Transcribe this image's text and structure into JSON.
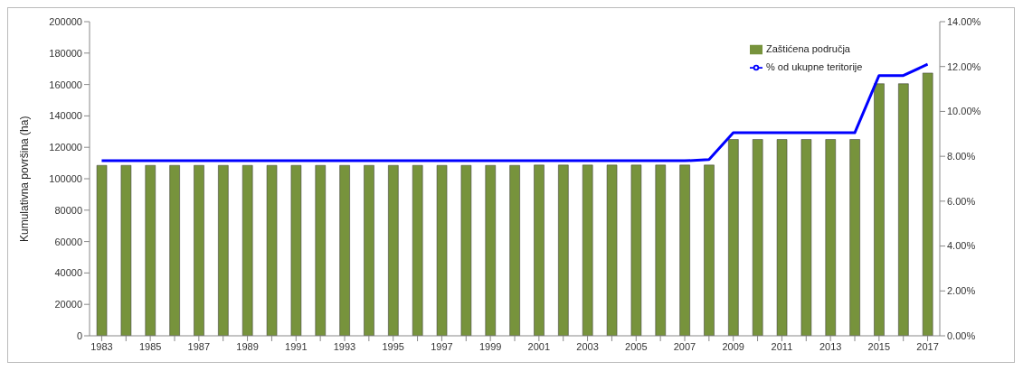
{
  "chart_data": {
    "type": "bar",
    "ylabel": "Kumulativna površina (ha)",
    "categories": [
      "1983",
      null,
      "1985",
      null,
      "1987",
      null,
      "1989",
      null,
      "1991",
      null,
      "1993",
      null,
      "1995",
      null,
      "1997",
      null,
      "1999",
      null,
      "2001",
      null,
      "2003",
      null,
      "2005",
      null,
      "2007",
      null,
      "2009",
      null,
      "2011",
      null,
      "2013",
      null,
      "2015",
      null,
      "2017"
    ],
    "series": [
      {
        "name": "Zaštićena područja",
        "color": "#77933c",
        "values": [
          108500,
          108500,
          108500,
          108500,
          108500,
          108500,
          108500,
          108500,
          108500,
          108500,
          108500,
          108500,
          108500,
          108500,
          108500,
          108500,
          108500,
          108500,
          108700,
          108700,
          108700,
          108700,
          108700,
          108700,
          108700,
          108700,
          125000,
          125000,
          125000,
          125000,
          125000,
          125000,
          160500,
          160500,
          167300
        ]
      },
      {
        "name": "% od ukupne teritorije",
        "type": "line",
        "axis": "y2",
        "color": "#0000ff",
        "values": [
          7.8,
          7.8,
          7.8,
          7.8,
          7.8,
          7.8,
          7.8,
          7.8,
          7.8,
          7.8,
          7.8,
          7.8,
          7.8,
          7.8,
          7.8,
          7.8,
          7.8,
          7.8,
          7.8,
          7.8,
          7.8,
          7.8,
          7.8,
          7.8,
          7.8,
          7.85,
          9.05,
          9.05,
          9.05,
          9.05,
          9.05,
          9.05,
          11.6,
          11.6,
          12.1
        ]
      }
    ],
    "ylim": [
      0,
      200000
    ],
    "yticks": [
      0,
      20000,
      40000,
      60000,
      80000,
      100000,
      120000,
      140000,
      160000,
      180000,
      200000
    ],
    "y2lim": [
      0,
      14
    ],
    "y2ticks": [
      {
        "value": 0,
        "label": "0.00%"
      },
      {
        "value": 2,
        "label": "2.00%"
      },
      {
        "value": 4,
        "label": "4.00%"
      },
      {
        "value": 6,
        "label": "6.00%"
      },
      {
        "value": 8,
        "label": "8.00%"
      },
      {
        "value": 10,
        "label": "10.00%"
      },
      {
        "value": 12,
        "label": "12.00%"
      },
      {
        "value": 14,
        "label": "14.00%"
      }
    ],
    "legend": "top right",
    "grid": false,
    "marker": "none",
    "line_style": "solid"
  }
}
